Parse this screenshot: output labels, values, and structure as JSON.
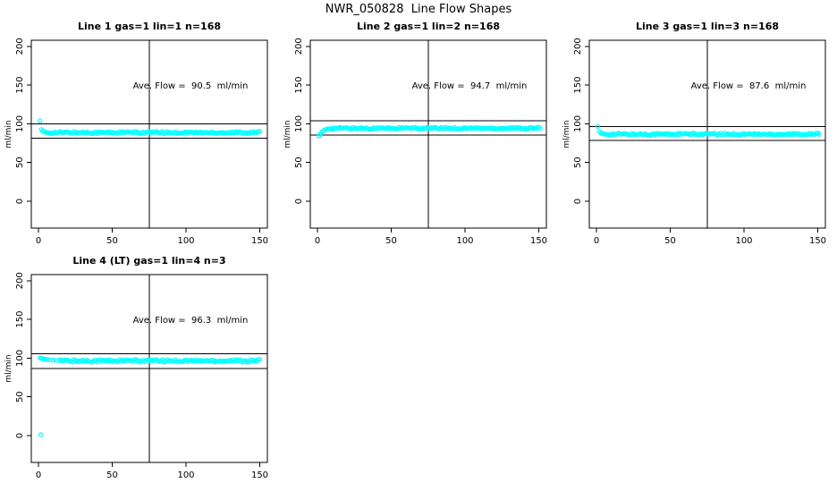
{
  "figure": {
    "title": "NWR_050828  Line Flow Shapes",
    "background_color": "#FFFFFF",
    "axis_color": "#000000",
    "marker_color": "#00FFFF"
  },
  "chart_data": [
    {
      "type": "scatter",
      "title": "Line 1 gas=1 lin=1 n=168",
      "line": 1,
      "gas": 1,
      "lin": 1,
      "n": 168,
      "annotation": "Ave. Flow =  90.5  ml/min",
      "ave_flow_ml_min": 90.5,
      "ylabel": "ml/min",
      "xlabel": "",
      "xticks": [
        0,
        50,
        100,
        150
      ],
      "yticks": [
        0,
        50,
        100,
        150,
        200
      ],
      "xlim": [
        -5,
        156
      ],
      "ylim": [
        -35,
        209
      ],
      "grid": false,
      "vline_x": 75,
      "hlines": [
        81.4,
        99.6
      ],
      "points": {
        "outliers": [],
        "transient": [
          [
            1,
            104
          ],
          [
            2,
            92.5
          ],
          [
            3,
            90.5
          ]
        ],
        "steady_start_x": 4,
        "steady_end_x": 150,
        "steady_value": 88.7,
        "noise_amplitude": 1.4
      }
    },
    {
      "type": "scatter",
      "title": "Line 2 gas=1 lin=2 n=168",
      "line": 2,
      "gas": 1,
      "lin": 2,
      "n": 168,
      "annotation": "Ave. Flow =  94.7  ml/min",
      "ave_flow_ml_min": 94.7,
      "ylabel": "ml/min",
      "xlabel": "",
      "xticks": [
        0,
        50,
        100,
        150
      ],
      "yticks": [
        0,
        50,
        100,
        150,
        200
      ],
      "xlim": [
        -5,
        156
      ],
      "ylim": [
        -35,
        209
      ],
      "grid": false,
      "vline_x": 75,
      "hlines": [
        85.2,
        104.2
      ],
      "points": {
        "outliers": [],
        "transient": [
          [
            1,
            84.5
          ],
          [
            2,
            87
          ],
          [
            3,
            89.5
          ],
          [
            4,
            91
          ],
          [
            5,
            92.2
          ],
          [
            6,
            93
          ],
          [
            7,
            93.6
          ]
        ],
        "steady_start_x": 8,
        "steady_end_x": 151,
        "steady_value": 94.2,
        "noise_amplitude": 1.3
      }
    },
    {
      "type": "scatter",
      "title": "Line 3 gas=1 lin=3 n=168",
      "line": 3,
      "gas": 1,
      "lin": 3,
      "n": 168,
      "annotation": "Ave. Flow =  87.6  ml/min",
      "ave_flow_ml_min": 87.6,
      "ylabel": "ml/min",
      "xlabel": "",
      "xticks": [
        0,
        50,
        100,
        150
      ],
      "yticks": [
        0,
        50,
        100,
        150,
        200
      ],
      "xlim": [
        -5,
        156
      ],
      "ylim": [
        -35,
        209
      ],
      "grid": false,
      "vline_x": 75,
      "hlines": [
        78.8,
        96.4
      ],
      "points": {
        "outliers": [],
        "transient": [
          [
            1,
            96.5
          ],
          [
            2,
            90
          ],
          [
            3,
            88
          ]
        ],
        "steady_start_x": 4,
        "steady_end_x": 151,
        "steady_value": 86.6,
        "noise_amplitude": 1.4
      }
    },
    {
      "type": "scatter",
      "title": "Line 4 (LT) gas=1 lin=4 n=3",
      "line": 4,
      "gas": 1,
      "lin": 4,
      "n": 3,
      "annotation": "Ave. Flow =  96.3  ml/min",
      "ave_flow_ml_min": 96.3,
      "ylabel": "ml/min",
      "xlabel": "",
      "xticks": [
        0,
        50,
        100,
        150
      ],
      "yticks": [
        0,
        50,
        100,
        150,
        200
      ],
      "xlim": [
        -5,
        156
      ],
      "ylim": [
        -35,
        209
      ],
      "grid": false,
      "vline_x": 75,
      "hlines": [
        86.7,
        105.9
      ],
      "points": {
        "outliers": [
          [
            1.5,
            1
          ]
        ],
        "transient": [
          [
            1,
            100.3
          ],
          [
            2,
            99.6
          ],
          [
            3,
            99.2
          ],
          [
            4,
            98.8
          ],
          [
            5,
            98.4
          ],
          [
            6,
            98.1
          ],
          [
            8,
            97.8
          ],
          [
            10,
            97.5
          ],
          [
            12,
            97.2
          ],
          [
            14,
            97
          ]
        ],
        "steady_start_x": 15,
        "steady_end_x": 150,
        "steady_value": 96.6,
        "noise_amplitude": 1.7
      }
    }
  ]
}
